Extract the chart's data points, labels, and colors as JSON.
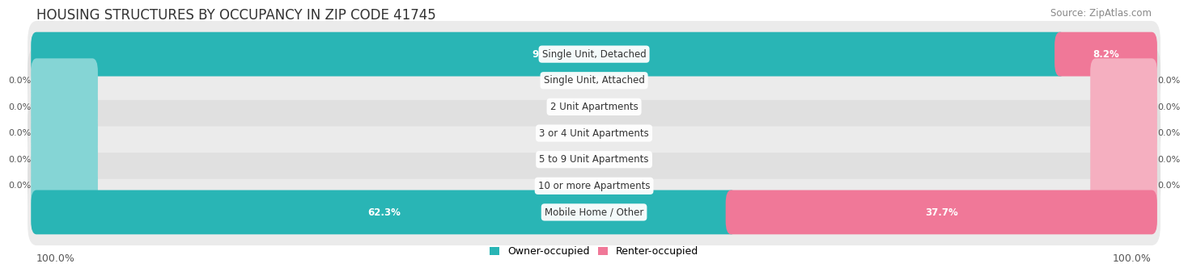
{
  "title": "HOUSING STRUCTURES BY OCCUPANCY IN ZIP CODE 41745",
  "source_text": "Source: ZipAtlas.com",
  "categories": [
    "Single Unit, Detached",
    "Single Unit, Attached",
    "2 Unit Apartments",
    "3 or 4 Unit Apartments",
    "5 to 9 Unit Apartments",
    "10 or more Apartments",
    "Mobile Home / Other"
  ],
  "owner_pct": [
    91.8,
    0.0,
    0.0,
    0.0,
    0.0,
    0.0,
    62.3
  ],
  "renter_pct": [
    8.2,
    0.0,
    0.0,
    0.0,
    0.0,
    0.0,
    37.7
  ],
  "owner_color": "#29b5b5",
  "renter_color": "#f07898",
  "owner_stub_color": "#85d5d5",
  "renter_stub_color": "#f5afc0",
  "title_fontsize": 12,
  "source_fontsize": 8.5,
  "legend_label_owner": "Owner-occupied",
  "legend_label_renter": "Renter-occupied",
  "axis_label_left": "100.0%",
  "axis_label_right": "100.0%",
  "background_color": "#ffffff",
  "row_bg_colors": [
    "#ebebeb",
    "#e0e0e0",
    "#ebebeb",
    "#e0e0e0",
    "#ebebeb",
    "#e0e0e0",
    "#ebebeb"
  ]
}
